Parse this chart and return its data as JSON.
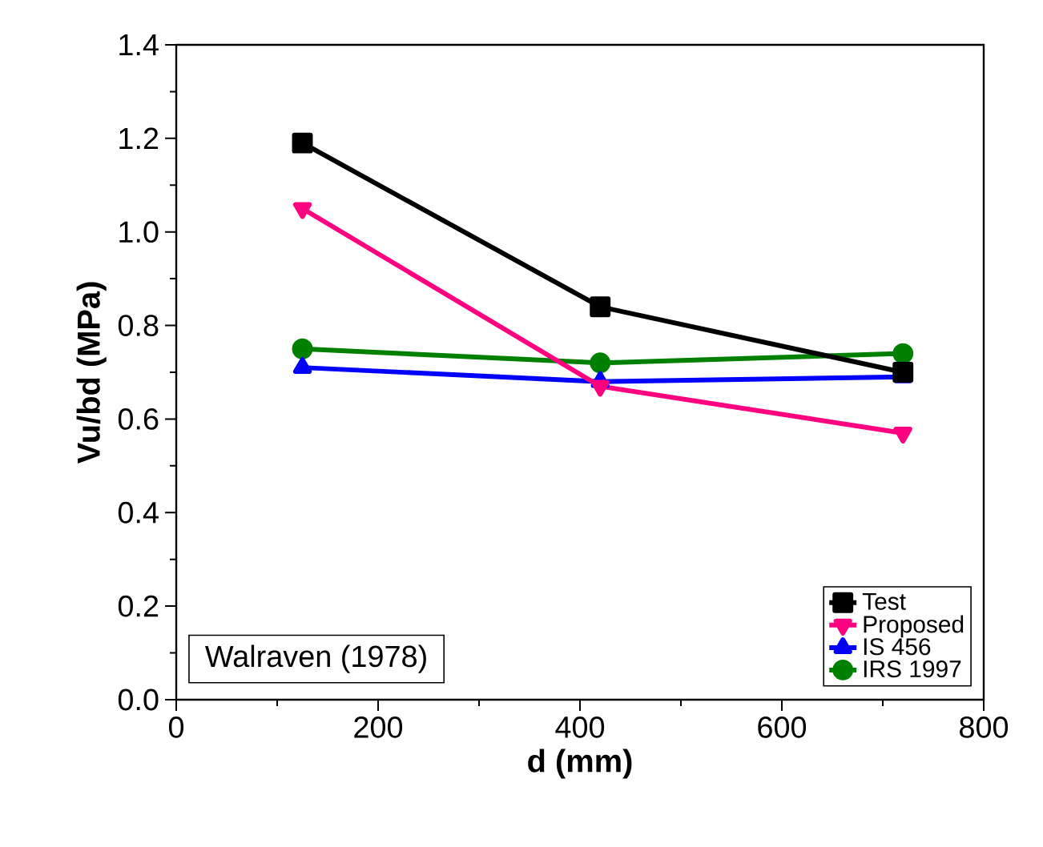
{
  "chart_data": {
    "type": "line",
    "xlabel": "d (mm)",
    "ylabel": "Vu/bd (MPa)",
    "x": [
      125,
      420,
      720
    ],
    "series": [
      {
        "name": "Test",
        "color": "#000000",
        "marker": "square",
        "values": [
          1.19,
          0.84,
          0.7
        ]
      },
      {
        "name": "Proposed",
        "color": "#ff0080",
        "marker": "triangle-down",
        "values": [
          1.05,
          0.67,
          0.57
        ]
      },
      {
        "name": "IS 456",
        "color": "#0000ff",
        "marker": "triangle",
        "values": [
          0.71,
          0.68,
          0.69
        ]
      },
      {
        "name": "IRS 1997",
        "color": "#008000",
        "marker": "circle",
        "values": [
          0.75,
          0.72,
          0.74
        ]
      }
    ],
    "xlim": [
      0,
      800
    ],
    "xticks": [
      0,
      200,
      400,
      600,
      800
    ],
    "ylim": [
      0.0,
      1.4
    ],
    "yticks": [
      {
        "value": 0.0,
        "label": "0.0"
      },
      {
        "value": 0.2,
        "label": "0.2"
      },
      {
        "value": 0.4,
        "label": "0.4"
      },
      {
        "value": 0.6,
        "label": "0.6"
      },
      {
        "value": 0.8,
        "label": "0.8"
      },
      {
        "value": 1.0,
        "label": "1.0"
      },
      {
        "value": 1.2,
        "label": "1.2"
      },
      {
        "value": 1.4,
        "label": "1.4"
      }
    ],
    "legend": "bottom right",
    "grid": false,
    "annotations": [
      "Walraven (1978)"
    ]
  }
}
